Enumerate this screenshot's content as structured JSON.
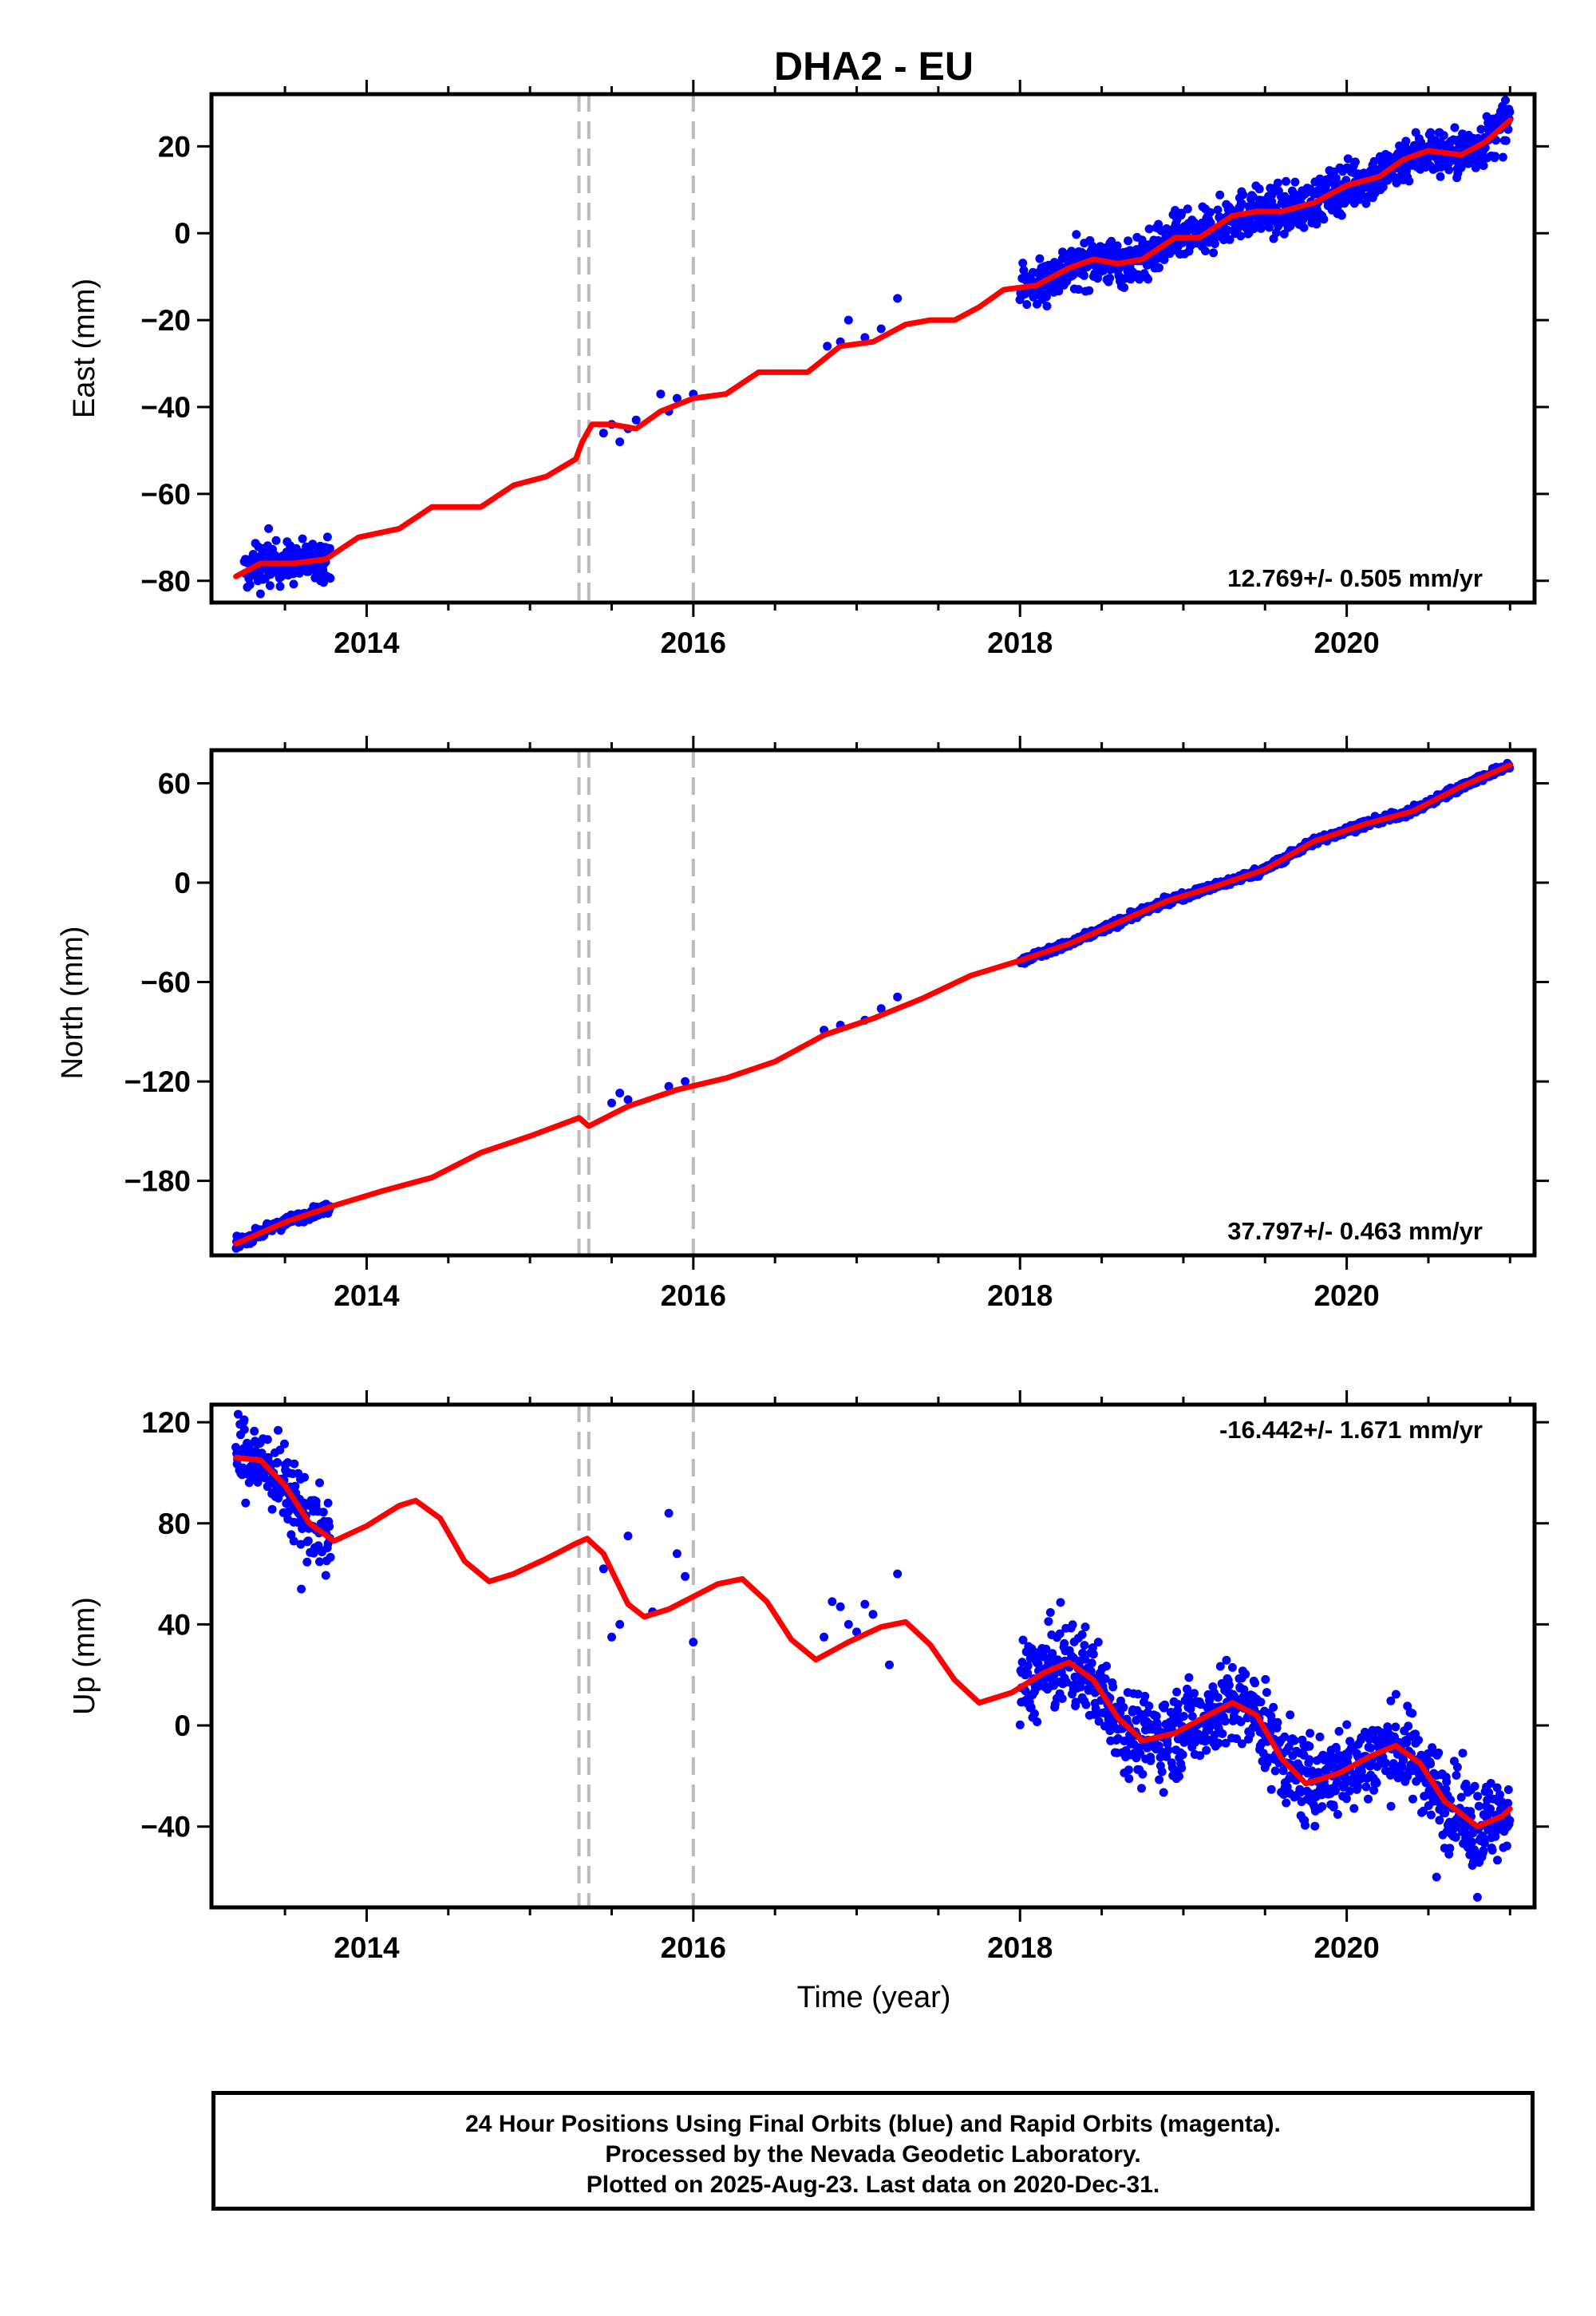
{
  "title": "DHA2 - EU",
  "xlabel": "Time (year)",
  "caption": [
    "24 Hour Positions Using Final Orbits (blue) and Rapid Orbits (magenta).",
    "Processed by the Nevada Geodetic Laboratory.",
    "Plotted on 2025-Aug-23. Last data on 2020-Dec-31."
  ],
  "colors": {
    "data": "#0000ff",
    "model": "#ff0000",
    "events": "#bbbbbb",
    "frame": "#000000"
  },
  "chart_data": [
    {
      "type": "scatter",
      "ylabel": "East (mm)",
      "rate_label": "12.769+/- 0.505 mm/yr",
      "rate_position": "bottom-right",
      "xlim": [
        2013.05,
        2021.15
      ],
      "ylim": [
        -85,
        32
      ],
      "x_ticks": [
        "2014",
        "2016",
        "2018",
        "2020"
      ],
      "y_ticks": [
        "20",
        "0",
        "−20",
        "−40",
        "−60",
        "−80"
      ],
      "y_tick_values": [
        20,
        0,
        -20,
        -40,
        -60,
        -80
      ],
      "event_lines": [
        2015.3,
        2015.36,
        2016.0
      ],
      "model": [
        [
          2013.2,
          -79
        ],
        [
          2013.35,
          -76
        ],
        [
          2013.55,
          -76
        ],
        [
          2013.75,
          -75
        ],
        [
          2013.95,
          -70
        ],
        [
          2014.2,
          -68
        ],
        [
          2014.4,
          -63
        ],
        [
          2014.55,
          -63
        ],
        [
          2014.7,
          -63
        ],
        [
          2014.9,
          -58
        ],
        [
          2015.1,
          -56
        ],
        [
          2015.28,
          -52
        ],
        [
          2015.32,
          -48
        ],
        [
          2015.38,
          -44
        ],
        [
          2015.5,
          -44
        ],
        [
          2015.65,
          -45
        ],
        [
          2015.8,
          -41
        ],
        [
          2016.0,
          -38
        ],
        [
          2016.2,
          -37
        ],
        [
          2016.4,
          -32
        ],
        [
          2016.55,
          -32
        ],
        [
          2016.7,
          -32
        ],
        [
          2016.9,
          -26
        ],
        [
          2017.1,
          -25
        ],
        [
          2017.3,
          -21
        ],
        [
          2017.45,
          -20
        ],
        [
          2017.6,
          -20
        ],
        [
          2017.75,
          -17
        ],
        [
          2017.9,
          -13
        ],
        [
          2018.1,
          -12
        ],
        [
          2018.3,
          -8
        ],
        [
          2018.45,
          -6
        ],
        [
          2018.6,
          -7
        ],
        [
          2018.75,
          -6
        ],
        [
          2018.95,
          -1
        ],
        [
          2019.1,
          -1
        ],
        [
          2019.3,
          4
        ],
        [
          2019.45,
          5
        ],
        [
          2019.6,
          5
        ],
        [
          2019.8,
          7
        ],
        [
          2020.0,
          11
        ],
        [
          2020.2,
          13
        ],
        [
          2020.35,
          17
        ],
        [
          2020.5,
          19
        ],
        [
          2020.7,
          18
        ],
        [
          2020.85,
          21
        ],
        [
          2021.0,
          26
        ]
      ],
      "dense_segments": [
        [
          2013.25,
          2013.78,
          6
        ],
        [
          2018.0,
          2021.0,
          7
        ]
      ],
      "sparse_points": [
        [
          2015.45,
          -46
        ],
        [
          2015.5,
          -44
        ],
        [
          2015.55,
          -48
        ],
        [
          2015.6,
          -45
        ],
        [
          2015.65,
          -43
        ],
        [
          2015.8,
          -37
        ],
        [
          2015.85,
          -41
        ],
        [
          2015.9,
          -38
        ],
        [
          2016.0,
          -37
        ],
        [
          2016.82,
          -26
        ],
        [
          2016.9,
          -25
        ],
        [
          2016.95,
          -20
        ],
        [
          2017.05,
          -24
        ],
        [
          2017.15,
          -22
        ],
        [
          2017.25,
          -15
        ],
        [
          2013.4,
          -68
        ],
        [
          2013.35,
          -83
        ]
      ]
    },
    {
      "type": "scatter",
      "ylabel": "North (mm)",
      "rate_label": "37.797+/- 0.463 mm/yr",
      "rate_position": "bottom-right",
      "xlim": [
        2013.05,
        2021.15
      ],
      "ylim": [
        -225,
        80
      ],
      "x_ticks": [
        "2014",
        "2016",
        "2018",
        "2020"
      ],
      "y_ticks": [
        "60",
        "0",
        "−60",
        "−120",
        "−180"
      ],
      "y_tick_values": [
        60,
        0,
        -60,
        -120,
        -180
      ],
      "event_lines": [
        2015.3,
        2015.36,
        2016.0
      ],
      "model": [
        [
          2013.2,
          -218
        ],
        [
          2013.5,
          -205
        ],
        [
          2013.8,
          -195
        ],
        [
          2014.1,
          -186
        ],
        [
          2014.4,
          -178
        ],
        [
          2014.7,
          -163
        ],
        [
          2015.0,
          -153
        ],
        [
          2015.3,
          -142
        ],
        [
          2015.36,
          -147
        ],
        [
          2015.6,
          -135
        ],
        [
          2015.9,
          -125
        ],
        [
          2016.2,
          -118
        ],
        [
          2016.5,
          -108
        ],
        [
          2016.8,
          -92
        ],
        [
          2017.1,
          -82
        ],
        [
          2017.4,
          -70
        ],
        [
          2017.7,
          -56
        ],
        [
          2018.0,
          -47
        ],
        [
          2018.3,
          -37
        ],
        [
          2018.6,
          -24
        ],
        [
          2018.9,
          -11
        ],
        [
          2019.2,
          -2
        ],
        [
          2019.5,
          8
        ],
        [
          2019.8,
          25
        ],
        [
          2020.1,
          35
        ],
        [
          2020.4,
          43
        ],
        [
          2020.7,
          58
        ],
        [
          2021.0,
          71
        ]
      ],
      "dense_segments": [
        [
          2013.2,
          2013.78,
          4
        ],
        [
          2018.0,
          2021.0,
          3
        ]
      ],
      "sparse_points": [
        [
          2015.5,
          -133
        ],
        [
          2015.55,
          -127
        ],
        [
          2015.6,
          -131
        ],
        [
          2015.85,
          -123
        ],
        [
          2015.95,
          -120
        ],
        [
          2016.8,
          -89
        ],
        [
          2016.9,
          -86
        ],
        [
          2017.05,
          -83
        ],
        [
          2017.15,
          -76
        ],
        [
          2017.25,
          -69
        ]
      ]
    },
    {
      "type": "scatter",
      "ylabel": "Up (mm)",
      "rate_label": "-16.442+/- 1.671 mm/yr",
      "rate_position": "top-right",
      "xlim": [
        2013.05,
        2021.15
      ],
      "ylim": [
        -72,
        127
      ],
      "x_ticks": [
        "2014",
        "2016",
        "2018",
        "2020"
      ],
      "y_ticks": [
        "120",
        "80",
        "40",
        "0",
        "−40"
      ],
      "y_tick_values": [
        120,
        80,
        40,
        0,
        -40
      ],
      "event_lines": [
        2015.3,
        2015.36,
        2016.0
      ],
      "model": [
        [
          2013.2,
          106
        ],
        [
          2013.35,
          105
        ],
        [
          2013.5,
          95
        ],
        [
          2013.65,
          80
        ],
        [
          2013.8,
          73
        ],
        [
          2014.0,
          79
        ],
        [
          2014.2,
          87
        ],
        [
          2014.3,
          89
        ],
        [
          2014.45,
          82
        ],
        [
          2014.6,
          65
        ],
        [
          2014.75,
          57
        ],
        [
          2014.9,
          60
        ],
        [
          2015.1,
          66
        ],
        [
          2015.28,
          72
        ],
        [
          2015.35,
          74
        ],
        [
          2015.45,
          68
        ],
        [
          2015.6,
          48
        ],
        [
          2015.7,
          43
        ],
        [
          2015.85,
          46
        ],
        [
          2016.0,
          51
        ],
        [
          2016.15,
          56
        ],
        [
          2016.3,
          58
        ],
        [
          2016.45,
          49
        ],
        [
          2016.6,
          34
        ],
        [
          2016.75,
          26
        ],
        [
          2016.95,
          33
        ],
        [
          2017.15,
          39
        ],
        [
          2017.3,
          41
        ],
        [
          2017.45,
          32
        ],
        [
          2017.6,
          18
        ],
        [
          2017.75,
          9
        ],
        [
          2017.95,
          13
        ],
        [
          2018.15,
          21
        ],
        [
          2018.3,
          25
        ],
        [
          2018.45,
          18
        ],
        [
          2018.6,
          3
        ],
        [
          2018.75,
          -6
        ],
        [
          2018.95,
          -3
        ],
        [
          2019.15,
          4
        ],
        [
          2019.3,
          9
        ],
        [
          2019.45,
          4
        ],
        [
          2019.6,
          -13
        ],
        [
          2019.75,
          -23
        ],
        [
          2019.95,
          -19
        ],
        [
          2020.15,
          -12
        ],
        [
          2020.3,
          -8
        ],
        [
          2020.45,
          -15
        ],
        [
          2020.6,
          -30
        ],
        [
          2020.8,
          -40
        ],
        [
          2020.95,
          -36
        ],
        [
          2021.0,
          -33
        ]
      ],
      "dense_segments": [
        [
          2013.2,
          2013.78,
          20
        ],
        [
          2018.0,
          2021.0,
          22
        ]
      ],
      "sparse_points": [
        [
          2015.45,
          62
        ],
        [
          2015.5,
          35
        ],
        [
          2015.55,
          40
        ],
        [
          2015.6,
          75
        ],
        [
          2015.75,
          45
        ],
        [
          2015.85,
          84
        ],
        [
          2015.9,
          68
        ],
        [
          2015.95,
          59
        ],
        [
          2016.0,
          33
        ],
        [
          2016.8,
          35
        ],
        [
          2016.85,
          49
        ],
        [
          2016.9,
          47
        ],
        [
          2016.95,
          40
        ],
        [
          2017.0,
          37
        ],
        [
          2017.05,
          48
        ],
        [
          2017.1,
          44
        ],
        [
          2017.2,
          24
        ],
        [
          2017.25,
          60
        ],
        [
          2013.25,
          121
        ],
        [
          2013.6,
          54
        ],
        [
          2020.55,
          -60
        ],
        [
          2020.8,
          -68
        ]
      ]
    }
  ]
}
